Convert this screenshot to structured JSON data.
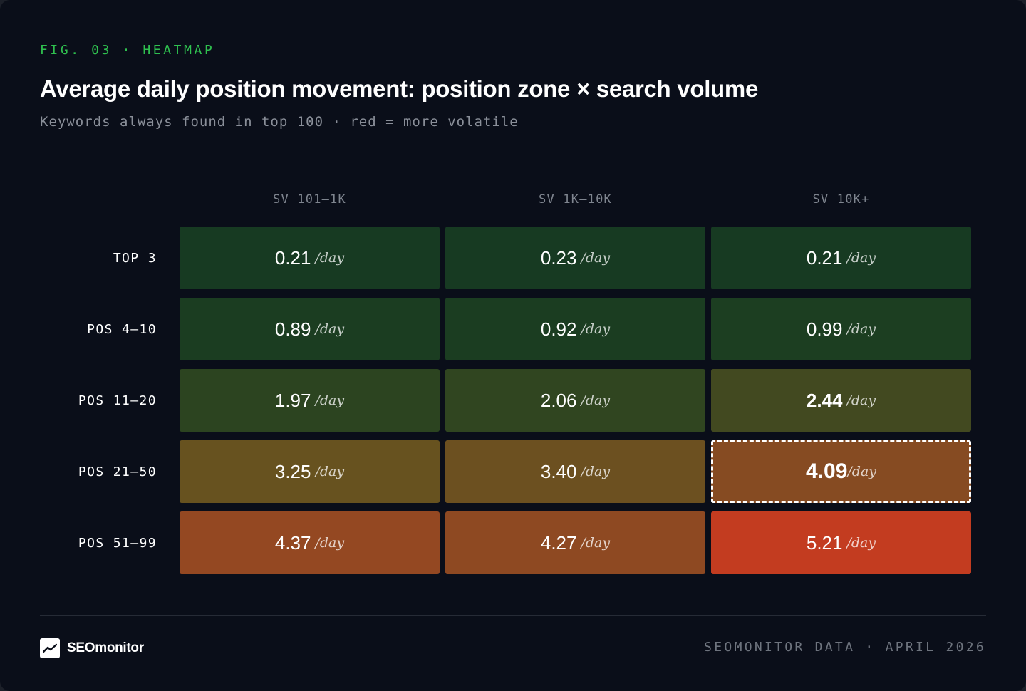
{
  "header": {
    "eyebrow": "FIG. 03 · HEATMAP",
    "title": "Average daily position movement: position zone × search volume",
    "subtitle": "Keywords always found in top 100 · red = more volatile"
  },
  "chart_data": {
    "type": "heatmap",
    "title": "Average daily position movement: position zone × search volume",
    "subtitle": "Keywords always found in top 100 · red = more volatile",
    "columns": [
      "SV 101–1K",
      "SV 1K–10K",
      "SV 10K+"
    ],
    "rows": [
      "TOP 3",
      "POS 4–10",
      "POS 11–20",
      "POS 21–50",
      "POS 51–99"
    ],
    "values": [
      [
        0.21,
        0.23,
        0.21
      ],
      [
        0.89,
        0.92,
        0.99
      ],
      [
        1.97,
        2.06,
        2.44
      ],
      [
        3.25,
        3.4,
        4.09
      ],
      [
        4.37,
        4.27,
        5.21
      ]
    ],
    "value_labels": [
      [
        "0.21",
        "0.23",
        "0.21"
      ],
      [
        "0.89",
        "0.92",
        "0.99"
      ],
      [
        "1.97",
        "2.06",
        "2.44"
      ],
      [
        "3.25",
        "3.40",
        "4.09"
      ],
      [
        "4.37",
        "4.27",
        "5.21"
      ]
    ],
    "unit": "/day",
    "highlighted_cell": {
      "row": 3,
      "col": 2
    },
    "color_scale": {
      "low": "#173a22",
      "mid": "#65521f",
      "high": "#c33c20"
    },
    "legend": "none",
    "grid": false
  },
  "footer": {
    "brand": "SEOmonitor",
    "brand_icon": "trend-line-icon",
    "source": "SEOMONITOR DATA · APRIL 2026"
  }
}
